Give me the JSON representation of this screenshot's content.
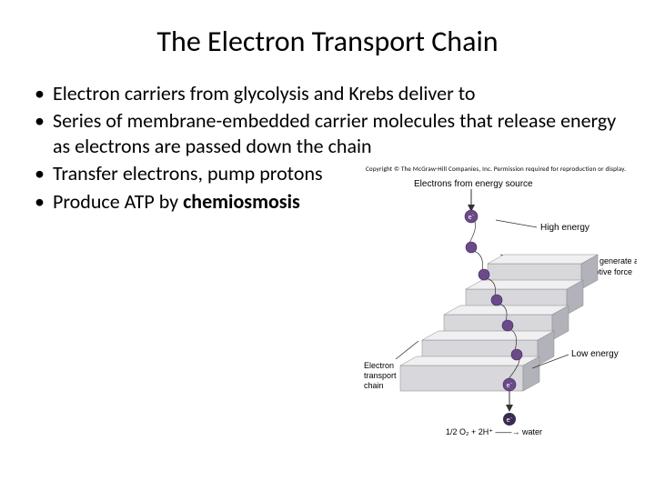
{
  "title": "The Electron Transport Chain",
  "bullets": [
    "Electron carriers from glycolysis and Krebs deliver to",
    "Series of membrane-embedded carrier molecules that release energy as electrons are passed down the chain",
    "Transfer electrons, pump protons",
    "Produce ATP by "
  ],
  "bold_term": "chemiosmosis",
  "diagram": {
    "copyright": "Copyright © The McGraw-Hill Companies, Inc. Permission required for reproduction or display.",
    "labels": {
      "top": "Electrons from energy source",
      "high": "High energy",
      "energy": "Energy to generate a proton motive force",
      "etc": "Electron transport chain",
      "low": "Low energy",
      "bottom": "1/2 O₂ + 2H⁺ —→ water"
    },
    "electron_label": "e⁻",
    "colors": {
      "step_face": "#d8d8dc",
      "step_top": "#f0f0f2",
      "step_side": "#b2b2ba",
      "electron": "#6b4a8a",
      "electron_edge": "#3b2a52",
      "pointer": "#333333",
      "background": "#ffffff"
    },
    "steps": 5,
    "electron_radius": 6
  }
}
